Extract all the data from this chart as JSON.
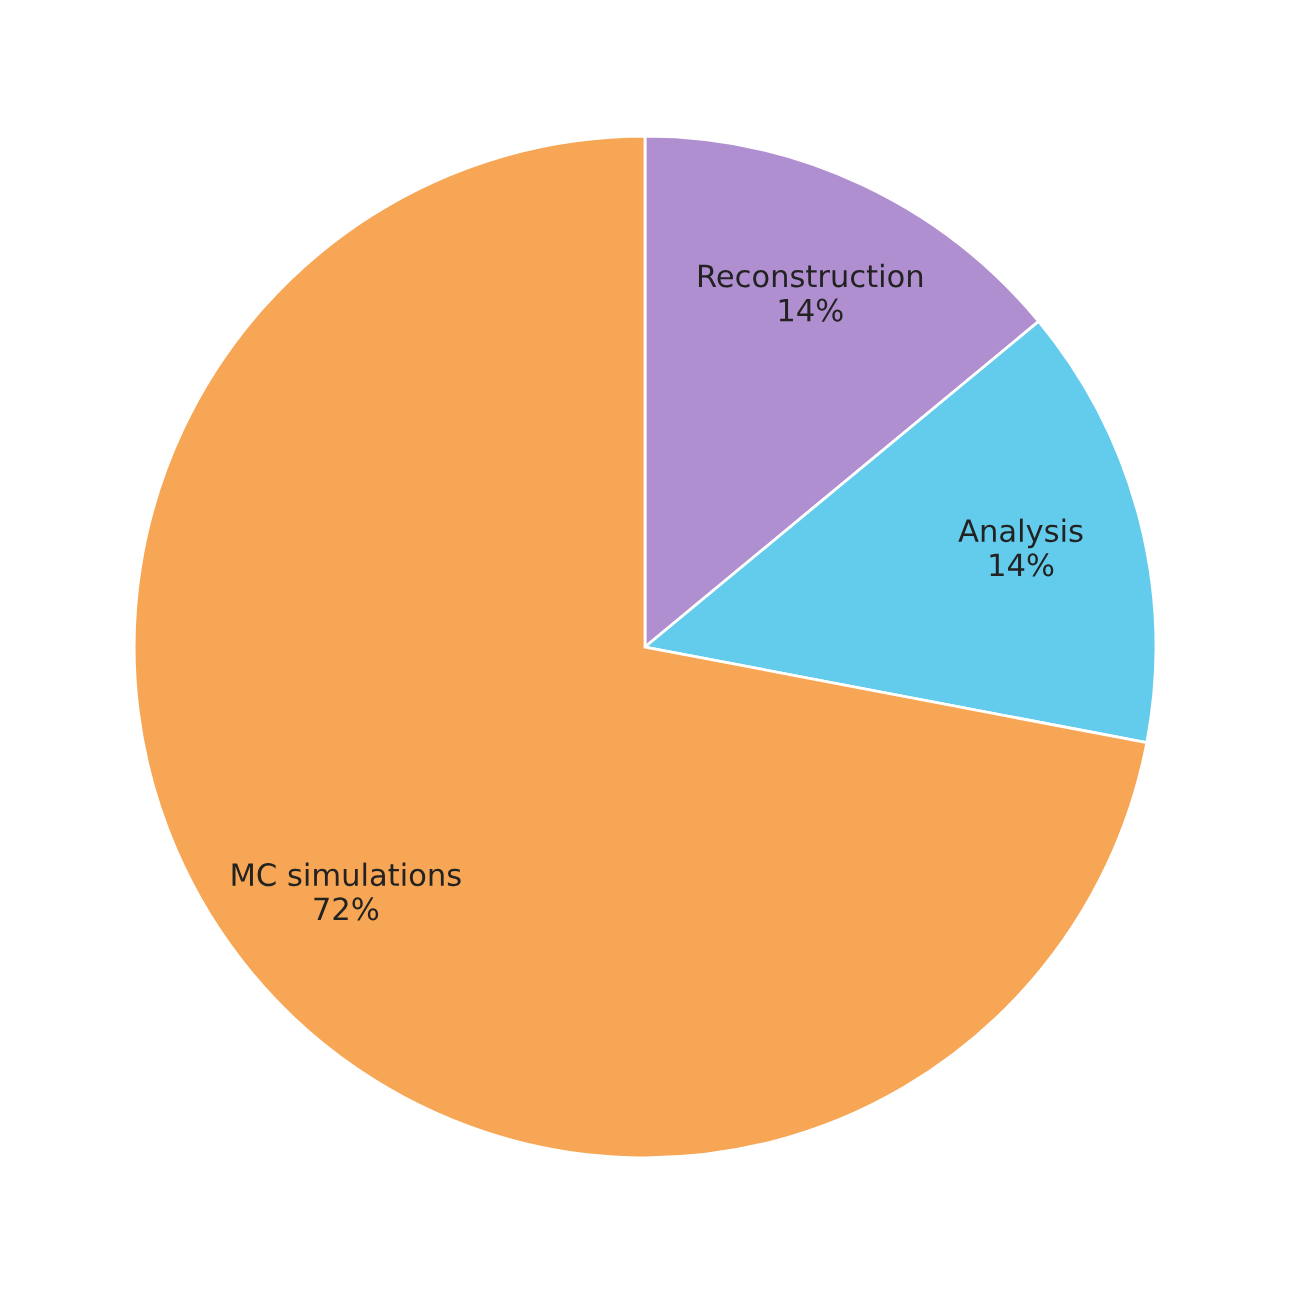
{
  "chart_data": {
    "type": "pie",
    "categories": [
      "Reconstruction",
      "Analysis",
      "MC simulations"
    ],
    "values": [
      14,
      14,
      72
    ],
    "value_labels": [
      "14%",
      "14%",
      "72%"
    ],
    "colors": [
      "#b08fd0",
      "#63cbeb",
      "#f6a654"
    ]
  }
}
